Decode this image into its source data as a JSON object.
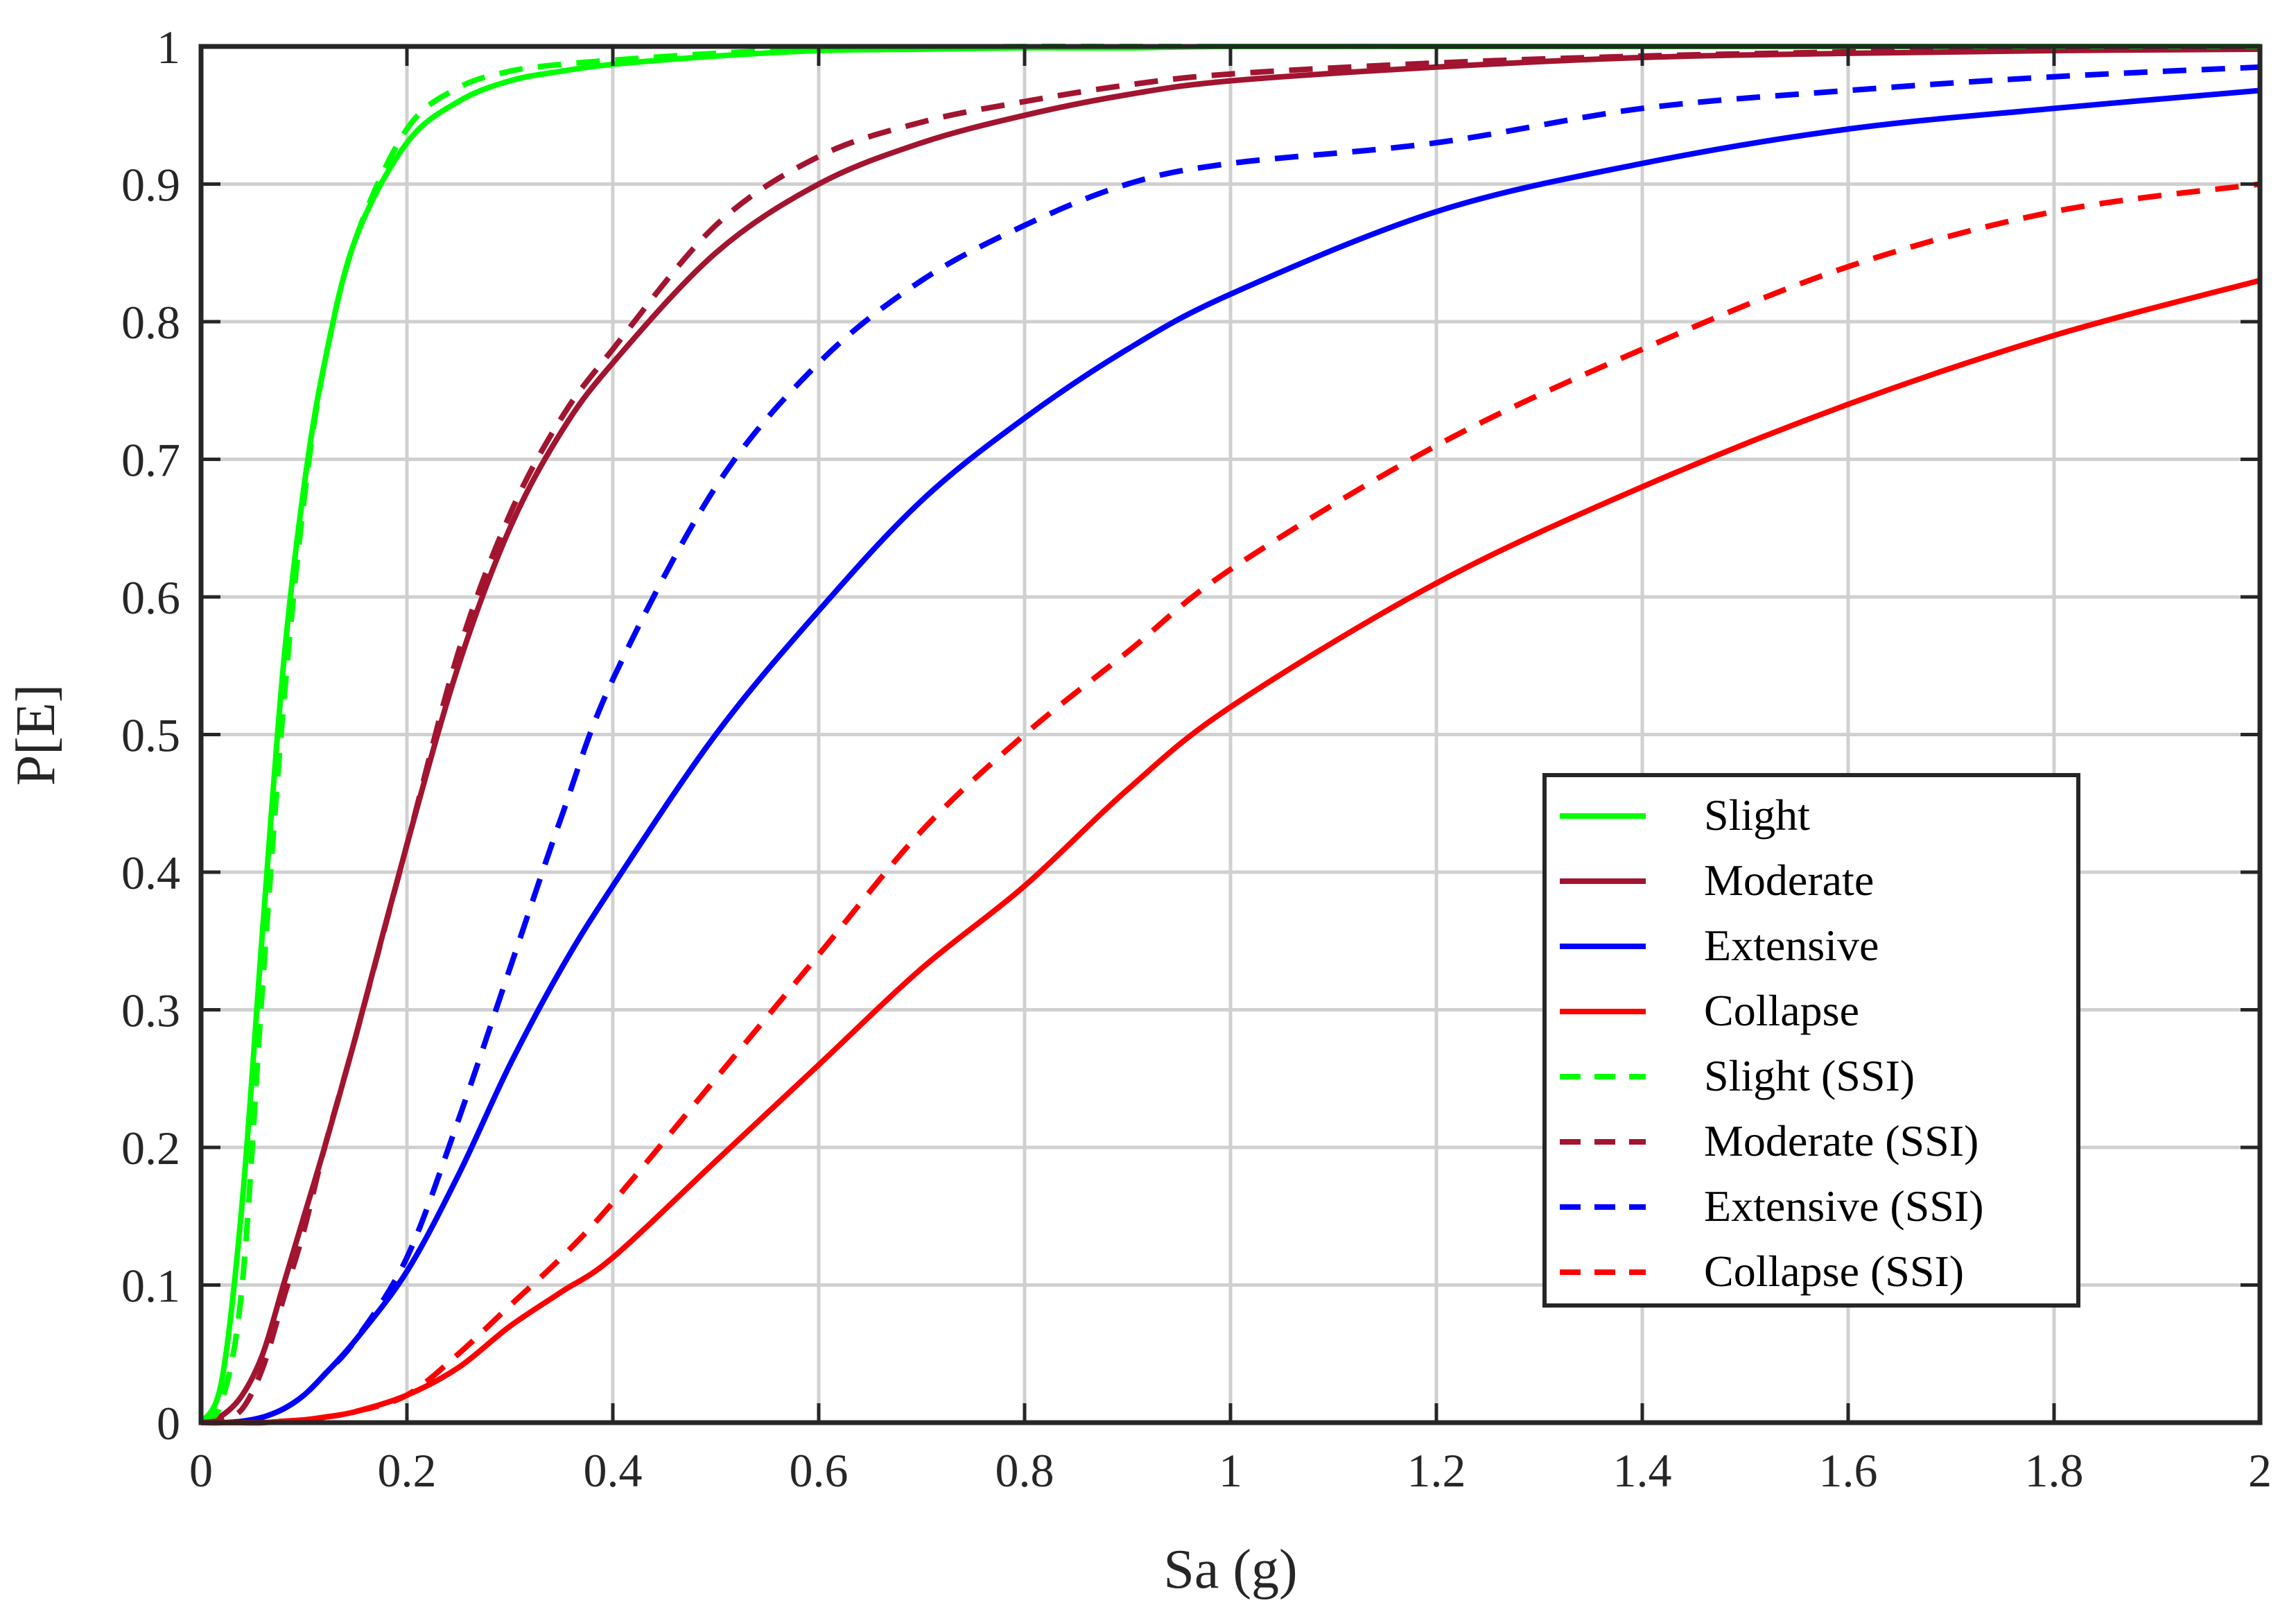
{
  "chart_data": {
    "type": "line",
    "title": "",
    "xlabel": "Sa (g)",
    "ylabel": "P[E]",
    "xlim": [
      0,
      2
    ],
    "ylim": [
      0,
      1
    ],
    "grid": true,
    "legend_position": "bottom-right",
    "xticks": [
      0,
      0.2,
      0.4,
      0.6,
      0.8,
      1,
      1.2,
      1.4,
      1.6,
      1.8,
      2
    ],
    "xtick_labels": [
      "0",
      "0.2",
      "0.4",
      "0.6",
      "0.8",
      "1",
      "1.2",
      "1.4",
      "1.6",
      "1.8",
      "2"
    ],
    "yticks": [
      0,
      0.1,
      0.2,
      0.3,
      0.4,
      0.5,
      0.6,
      0.7,
      0.8,
      0.9,
      1
    ],
    "ytick_labels": [
      "0",
      "0.1",
      "0.2",
      "0.3",
      "0.4",
      "0.5",
      "0.6",
      "0.7",
      "0.8",
      "0.9",
      "1"
    ],
    "x": [
      0,
      0.02,
      0.04,
      0.06,
      0.08,
      0.1,
      0.12,
      0.15,
      0.2,
      0.25,
      0.3,
      0.35,
      0.4,
      0.5,
      0.6,
      0.7,
      0.8,
      0.9,
      1.0,
      1.2,
      1.4,
      1.6,
      1.8,
      2.0
    ],
    "series": [
      {
        "name": "Slight",
        "color": "#00ff00",
        "dash": "solid",
        "values": [
          0,
          0.03,
          0.16,
          0.36,
          0.55,
          0.68,
          0.77,
          0.86,
          0.93,
          0.96,
          0.975,
          0.982,
          0.987,
          0.993,
          0.997,
          0.998,
          0.999,
          0.999,
          1.0,
          1.0,
          1.0,
          1.0,
          1.0,
          1.0
        ]
      },
      {
        "name": "Moderate",
        "color": "#a2142f",
        "dash": "solid",
        "values": [
          0,
          0.005,
          0.02,
          0.05,
          0.1,
          0.15,
          0.2,
          0.28,
          0.42,
          0.55,
          0.65,
          0.72,
          0.77,
          0.85,
          0.9,
          0.93,
          0.95,
          0.965,
          0.975,
          0.985,
          0.992,
          0.995,
          0.997,
          0.998
        ]
      },
      {
        "name": "Extensive",
        "color": "#0000ff",
        "dash": "solid",
        "values": [
          0,
          0,
          0.001,
          0.004,
          0.01,
          0.02,
          0.035,
          0.06,
          0.11,
          0.18,
          0.26,
          0.33,
          0.39,
          0.5,
          0.59,
          0.67,
          0.73,
          0.78,
          0.82,
          0.88,
          0.915,
          0.94,
          0.955,
          0.968
        ]
      },
      {
        "name": "Collapse",
        "color": "#ff0000",
        "dash": "solid",
        "values": [
          0,
          0,
          0,
          0,
          0.001,
          0.002,
          0.004,
          0.008,
          0.02,
          0.04,
          0.07,
          0.095,
          0.12,
          0.19,
          0.26,
          0.33,
          0.39,
          0.46,
          0.52,
          0.61,
          0.68,
          0.74,
          0.79,
          0.83
        ]
      },
      {
        "name": "Slight (SSI)",
        "color": "#00ff00",
        "dash": "dashed",
        "values": [
          0,
          0.015,
          0.1,
          0.32,
          0.52,
          0.67,
          0.77,
          0.86,
          0.94,
          0.97,
          0.982,
          0.987,
          0.99,
          0.995,
          0.998,
          0.999,
          1.0,
          1.0,
          1.0,
          1.0,
          1.0,
          1.0,
          1.0,
          1.0
        ]
      },
      {
        "name": "Moderate (SSI)",
        "color": "#a2142f",
        "dash": "dashed",
        "values": [
          0,
          0.002,
          0.01,
          0.04,
          0.09,
          0.14,
          0.2,
          0.28,
          0.42,
          0.56,
          0.66,
          0.73,
          0.78,
          0.87,
          0.92,
          0.945,
          0.96,
          0.972,
          0.98,
          0.988,
          0.993,
          0.996,
          0.998,
          0.999
        ]
      },
      {
        "name": "Extensive (SSI)",
        "color": "#0000ff",
        "dash": "dashed",
        "values": [
          0,
          0,
          0.001,
          0.004,
          0.01,
          0.02,
          0.035,
          0.06,
          0.12,
          0.22,
          0.33,
          0.44,
          0.54,
          0.68,
          0.77,
          0.83,
          0.87,
          0.9,
          0.915,
          0.93,
          0.955,
          0.968,
          0.978,
          0.985
        ]
      },
      {
        "name": "Collapse (SSI)",
        "color": "#ff0000",
        "dash": "dashed",
        "values": [
          0,
          0,
          0,
          0,
          0.001,
          0.002,
          0.004,
          0.008,
          0.02,
          0.05,
          0.085,
          0.12,
          0.16,
          0.25,
          0.34,
          0.43,
          0.5,
          0.56,
          0.62,
          0.71,
          0.78,
          0.84,
          0.88,
          0.9
        ]
      }
    ]
  }
}
